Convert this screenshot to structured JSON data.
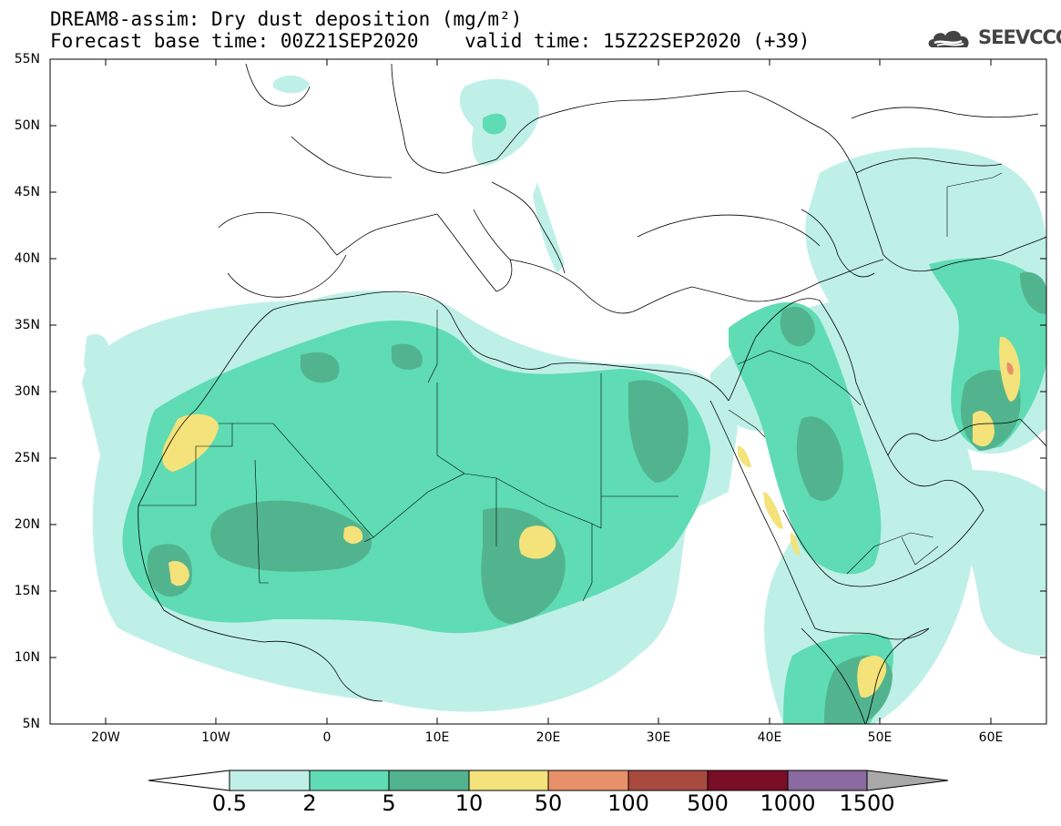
{
  "header": {
    "title_line1": "DREAM8-assim: Dry dust deposition (mg/m²)",
    "title_line2": "Forecast base time: 00Z21SEP2020    valid time: 15Z22SEP2020 (+39)",
    "logo_text": "SEEVCCC"
  },
  "axes": {
    "lat_labels": [
      "55N",
      "50N",
      "45N",
      "40N",
      "35N",
      "30N",
      "25N",
      "20N",
      "15N",
      "10N",
      "5N"
    ],
    "lon_labels": [
      "20W",
      "10W",
      "0",
      "10E",
      "20E",
      "30E",
      "40E",
      "50E",
      "60E"
    ]
  },
  "colorbar": {
    "labels": [
      "0.5",
      "2",
      "5",
      "10",
      "50",
      "100",
      "500",
      "1000",
      "1500"
    ],
    "colors": [
      "#bff0e8",
      "#5fdcb4",
      "#52b48e",
      "#f4e27a",
      "#e8906a",
      "#a84a3e",
      "#7a0e26",
      "#8a6aa0"
    ],
    "under_color": "#ffffff",
    "over_color": "#a8a8a8"
  },
  "map": {
    "region": "North Africa, Middle East and Europe",
    "lon_range": [
      -25,
      65
    ],
    "lat_range": [
      5,
      55
    ],
    "field": "dust deposition"
  }
}
